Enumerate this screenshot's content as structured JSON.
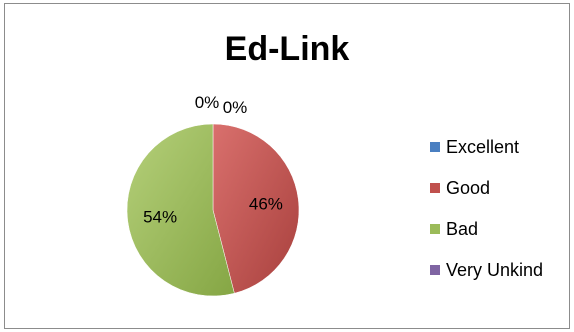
{
  "chart_data": {
    "type": "pie",
    "title": "Ed-Link",
    "categories": [
      "Excellent",
      "Good",
      "Bad",
      "Very Unkind"
    ],
    "values": [
      0,
      46,
      54,
      0
    ],
    "labels": [
      "0%",
      "46%",
      "54%",
      "0%"
    ],
    "colors": [
      "#4a7fc1",
      "#c0504d",
      "#9bbb59",
      "#7f64a2"
    ],
    "legend_position": "right"
  }
}
